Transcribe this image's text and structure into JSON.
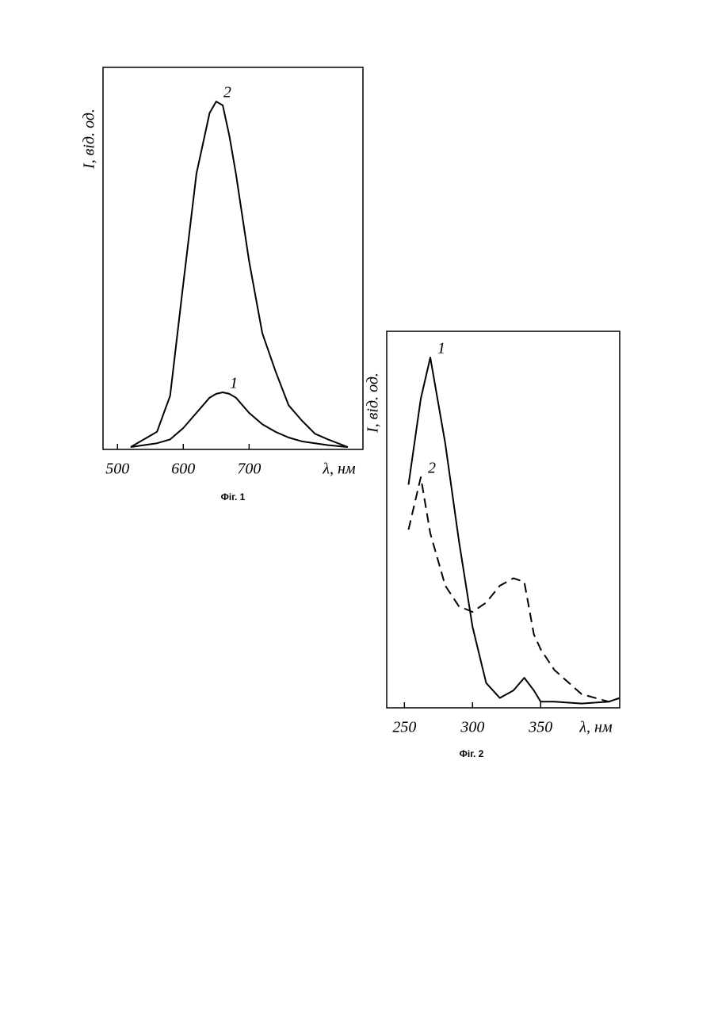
{
  "chart_data": [
    {
      "type": "line",
      "title": "Фіг. 1",
      "x_label": "λ, нм",
      "y_label": "I, від. од.",
      "x": [
        520,
        560,
        580,
        600,
        620,
        640,
        650,
        660,
        670,
        680,
        700,
        720,
        740,
        760,
        780,
        800,
        820,
        850
      ],
      "series": [
        {
          "name": "1",
          "color": "#000000",
          "linestyle": "solid",
          "values": [
            0,
            1,
            2,
            5,
            9,
            13,
            14,
            14.4,
            14,
            13,
            9,
            6,
            4,
            2.5,
            1.5,
            1,
            0.5,
            0
          ]
        },
        {
          "name": "2",
          "color": "#000000",
          "linestyle": "solid",
          "values": [
            0,
            4,
            13.5,
            43,
            72,
            88,
            91,
            90,
            82,
            72,
            49,
            30,
            20,
            11,
            7,
            3.5,
            2,
            0
          ]
        }
      ],
      "xlim": [
        478,
        873
      ],
      "ylim": [
        0,
        100
      ],
      "xticks": [
        500,
        600,
        700
      ]
    },
    {
      "type": "line",
      "title": "Фіг. 2",
      "x_label": "λ, нм",
      "y_label": "I, від. од.",
      "x": [
        253,
        262,
        269,
        280,
        290,
        300,
        310,
        320,
        330,
        338,
        345,
        350,
        360,
        380,
        400,
        408
      ],
      "series": [
        {
          "name": "1",
          "color": "#000000",
          "linestyle": "solid",
          "values": [
            59,
            82,
            93,
            70,
            44,
            21,
            6,
            2,
            4,
            7.4,
            4,
            1,
            1,
            0.5,
            1,
            2
          ]
        },
        {
          "name": "2",
          "color": "#000000",
          "linestyle": "dashed",
          "values": [
            47,
            61,
            46,
            32,
            26.5,
            25,
            27.5,
            32,
            34,
            33,
            19,
            15,
            9.5,
            3,
            1,
            2
          ]
        }
      ],
      "xlim": [
        237,
        408
      ],
      "ylim": [
        0,
        100
      ],
      "xticks": [
        250,
        300,
        350
      ]
    }
  ]
}
